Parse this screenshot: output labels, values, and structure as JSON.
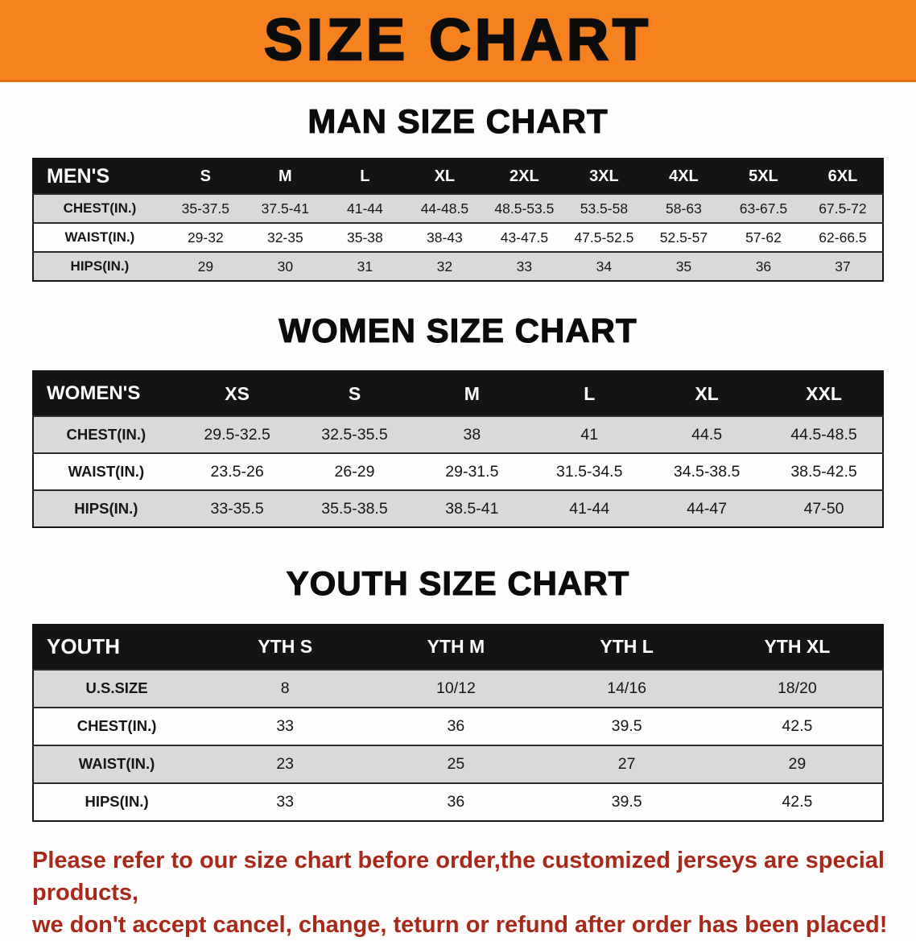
{
  "banner": {
    "title": "SIZE CHART"
  },
  "sections": [
    {
      "heading": "MAN SIZE CHART",
      "table": {
        "header": [
          "MEN'S",
          "S",
          "M",
          "L",
          "XL",
          "2XL",
          "3XL",
          "4XL",
          "5XL",
          "6XL"
        ],
        "rows": [
          [
            "CHEST(IN.)",
            "35-37.5",
            "37.5-41",
            "41-44",
            "44-48.5",
            "48.5-53.5",
            "53.5-58",
            "58-63",
            "63-67.5",
            "67.5-72"
          ],
          [
            "WAIST(IN.)",
            "29-32",
            "32-35",
            "35-38",
            "38-43",
            "43-47.5",
            "47.5-52.5",
            "52.5-57",
            "57-62",
            "62-66.5"
          ],
          [
            "HIPS(IN.)",
            "29",
            "30",
            "31",
            "32",
            "33",
            "34",
            "35",
            "36",
            "37"
          ]
        ]
      }
    },
    {
      "heading": "WOMEN SIZE CHART",
      "table": {
        "header": [
          "WOMEN'S",
          "XS",
          "S",
          "M",
          "L",
          "XL",
          "XXL"
        ],
        "rows": [
          [
            "CHEST(IN.)",
            "29.5-32.5",
            "32.5-35.5",
            "38",
            "41",
            "44.5",
            "44.5-48.5"
          ],
          [
            "WAIST(IN.)",
            "23.5-26",
            "26-29",
            "29-31.5",
            "31.5-34.5",
            "34.5-38.5",
            "38.5-42.5"
          ],
          [
            "HIPS(IN.)",
            "33-35.5",
            "35.5-38.5",
            "38.5-41",
            "41-44",
            "44-47",
            "47-50"
          ]
        ]
      }
    },
    {
      "heading": "YOUTH SIZE CHART",
      "table": {
        "header": [
          "YOUTH",
          "YTH S",
          "YTH M",
          "YTH L",
          "YTH XL"
        ],
        "rows": [
          [
            "U.S.SIZE",
            "8",
            "10/12",
            "14/16",
            "18/20"
          ],
          [
            "CHEST(IN.)",
            "33",
            "36",
            "39.5",
            "42.5"
          ],
          [
            "WAIST(IN.)",
            "23",
            "25",
            "27",
            "29"
          ],
          [
            "HIPS(IN.)",
            "33",
            "36",
            "39.5",
            "42.5"
          ]
        ]
      }
    }
  ],
  "disclaimer": {
    "line1": "Please refer to our size chart before order,the customized jerseys are special products,",
    "line2": "we don't accept cancel, change, teturn or refund after order has been placed!"
  },
  "colors": {
    "banner_bg": "#f5821f",
    "banner_text": "#0d0d0d",
    "header_row_bg": "#141414",
    "stripe_row_bg": "#d9d9d9",
    "disclaimer_text": "#a8281a"
  }
}
